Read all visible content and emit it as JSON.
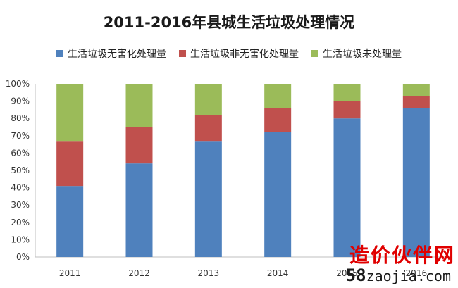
{
  "chart_data": {
    "type": "bar",
    "stacked": true,
    "title": "2011-2016年县城生活垃圾处理情况",
    "categories": [
      "2011",
      "2012",
      "2013",
      "2014",
      "2015",
      "2016"
    ],
    "series": [
      {
        "name": "生活垃圾无害化处理量",
        "color": "#4f81bd",
        "values": [
          41,
          54,
          67,
          72,
          80,
          86
        ]
      },
      {
        "name": "生活垃圾非无害化处理量",
        "color": "#c0504d",
        "values": [
          26,
          21,
          15,
          14,
          10,
          7
        ]
      },
      {
        "name": "生活垃圾未处理量",
        "color": "#9bbb59",
        "values": [
          33,
          25,
          18,
          14,
          10,
          7
        ]
      }
    ],
    "ylim": [
      0,
      100
    ],
    "yticks": [
      "0%",
      "10%",
      "20%",
      "30%",
      "40%",
      "50%",
      "60%",
      "70%",
      "80%",
      "90%",
      "100%"
    ],
    "grid": false,
    "legend_position": "top"
  },
  "watermark": {
    "line1": "造价伙伴网",
    "line2_num": "58",
    "line2_rest": "zaojia.com"
  }
}
